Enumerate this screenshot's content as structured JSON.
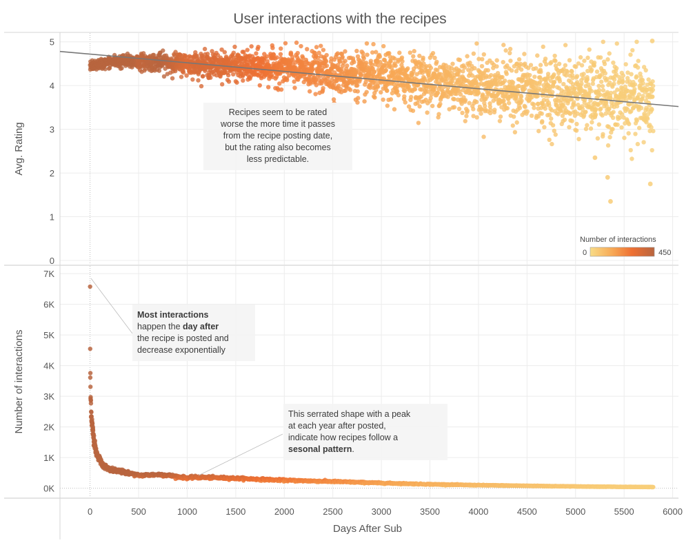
{
  "chart_data": {
    "title": "User interactions with the recipes",
    "xlabel": "Days After Sub",
    "x_ticks": [
      0,
      500,
      1000,
      1500,
      2000,
      2500,
      3000,
      3500,
      4000,
      4500,
      5000,
      5500,
      6000
    ],
    "xlim": [
      -310,
      6060
    ],
    "panels": [
      {
        "type": "scatter",
        "ylabel": "Avg. Rating",
        "ylim": [
          0,
          5.2
        ],
        "y_ticks": [
          0,
          1,
          2,
          3,
          4,
          5
        ],
        "y_tick_labels": [
          "0",
          "1",
          "2",
          "3",
          "4",
          "5"
        ],
        "trend_line": {
          "x": [
            -310,
            6060
          ],
          "y": [
            4.78,
            3.52
          ]
        },
        "series_description": "one point per day after submission, avg rating",
        "data_keypoints": [
          {
            "x": 0,
            "y": 4.45
          },
          {
            "x": 250,
            "y": 4.55
          },
          {
            "x": 500,
            "y": 4.55
          },
          {
            "x": 1000,
            "y": 4.5
          },
          {
            "x": 1500,
            "y": 4.45
          },
          {
            "x": 2000,
            "y": 4.4
          },
          {
            "x": 2500,
            "y": 4.3
          },
          {
            "x": 3000,
            "y": 4.2
          },
          {
            "x": 3500,
            "y": 4.1
          },
          {
            "x": 4000,
            "y": 4.0
          },
          {
            "x": 4500,
            "y": 3.9
          },
          {
            "x": 5000,
            "y": 3.8
          },
          {
            "x": 5500,
            "y": 3.7
          },
          {
            "x": 5800,
            "y": 3.6
          }
        ],
        "notable_points": [
          {
            "x": 5360,
            "y": 1.35
          },
          {
            "x": 5790,
            "y": 5.02
          },
          {
            "x": 5770,
            "y": 1.75
          },
          {
            "x": 5330,
            "y": 1.9
          },
          {
            "x": 5200,
            "y": 2.35
          }
        ]
      },
      {
        "type": "scatter",
        "ylabel": "Number of interactions",
        "ylim": [
          -300,
          7250
        ],
        "y_ticks": [
          0,
          1000,
          2000,
          3000,
          4000,
          5000,
          6000,
          7000
        ],
        "y_tick_labels": [
          "0K",
          "1K",
          "2K",
          "3K",
          "4K",
          "5K",
          "6K",
          "7K"
        ],
        "data_keypoints": [
          {
            "x": 0,
            "y": 6700
          },
          {
            "x": 1,
            "y": 4300
          },
          {
            "x": 2,
            "y": 3700
          },
          {
            "x": 5,
            "y": 3000
          },
          {
            "x": 15,
            "y": 2300
          },
          {
            "x": 30,
            "y": 1800
          },
          {
            "x": 60,
            "y": 1200
          },
          {
            "x": 120,
            "y": 800
          },
          {
            "x": 200,
            "y": 600
          },
          {
            "x": 365,
            "y": 520
          },
          {
            "x": 500,
            "y": 420
          },
          {
            "x": 730,
            "y": 450
          },
          {
            "x": 1000,
            "y": 340
          },
          {
            "x": 1095,
            "y": 360
          },
          {
            "x": 1460,
            "y": 330
          },
          {
            "x": 2000,
            "y": 260
          },
          {
            "x": 2500,
            "y": 220
          },
          {
            "x": 3000,
            "y": 170
          },
          {
            "x": 3500,
            "y": 130
          },
          {
            "x": 4000,
            "y": 100
          },
          {
            "x": 4500,
            "y": 80
          },
          {
            "x": 5000,
            "y": 60
          },
          {
            "x": 5500,
            "y": 45
          },
          {
            "x": 5800,
            "y": 40
          }
        ]
      }
    ],
    "color_legend": {
      "title": "Number of interactions",
      "min_label": "0",
      "max_label": "450",
      "min": 0,
      "max": 450,
      "colors": [
        "#f8dc87",
        "#f7a855",
        "#ee7033",
        "#b8653f"
      ],
      "placement": "bottom-right of top panel"
    },
    "annotations": {
      "rating": {
        "lines": [
          "Recipes seem to be rated",
          "worse the more time it passes",
          "from the recipe posting date,",
          "but the rating also becomes",
          "less predictable."
        ]
      },
      "most": {
        "bold1": "Most interactions",
        "text1": "happen the ",
        "bold2": "day after",
        "text2": "the recipe is posted and",
        "text3": "decrease exponentially"
      },
      "serrated": {
        "line1": "This serrated shape with a peak",
        "line2": "at each year after posted,",
        "line3": "indicate how recipes follow a",
        "bold": "sesonal pattern",
        "suffix": "."
      }
    }
  }
}
